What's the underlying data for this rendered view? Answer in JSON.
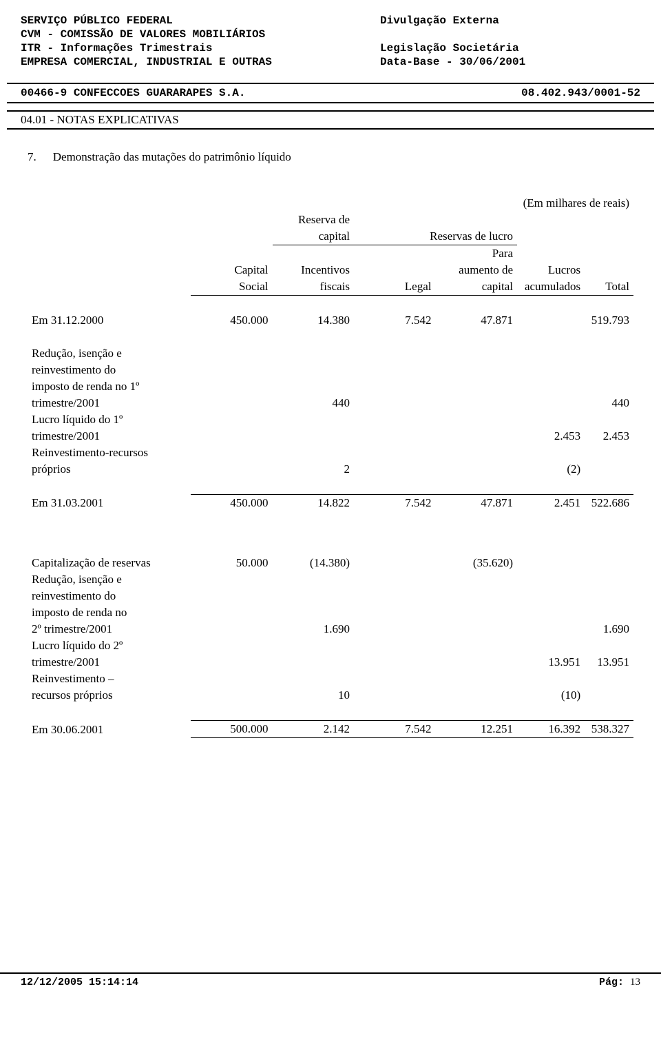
{
  "header": {
    "l1_left": "SERVIÇO PÚBLICO FEDERAL",
    "l1_right": "Divulgação Externa",
    "l2": "CVM - COMISSÃO DE VALORES MOBILIÁRIOS",
    "l3_left": "ITR - Informações Trimestrais",
    "l3_right": "Legislação Societária",
    "l4_left": "EMPRESA COMERCIAL, INDUSTRIAL E OUTRAS",
    "l4_right": "Data-Base - 30/06/2001"
  },
  "company_bar": {
    "code_name": "00466-9 CONFECCOES GUARARAPES S.A.",
    "cnpj": "08.402.943/0001-52"
  },
  "section_bar": "04.01 - NOTAS EXPLICATIVAS",
  "section": {
    "number": "7.",
    "title": "Demonstração das mutações do patrimônio líquido"
  },
  "unit": "(Em milhares de reais)",
  "col_headers": {
    "reserva_de": "Reserva de",
    "capital_small": "capital",
    "reservas_lucro": "Reservas de lucro",
    "capital": "Capital",
    "social": "Social",
    "incentivos": "Incentivos",
    "fiscais": "fiscais",
    "legal": "Legal",
    "para": "Para",
    "aumento_de": "aumento de",
    "capital2": "capital",
    "lucros": "Lucros",
    "acumulados": "acumulados",
    "total": "Total"
  },
  "rows": {
    "r1": {
      "label": "Em 31.12.2000",
      "c1": "450.000",
      "c2": "14.380",
      "c3": "7.542",
      "c4": "47.871",
      "c5": "",
      "c6": "519.793"
    },
    "r2a": "Redução, isenção e",
    "r2b": "reinvestimento do",
    "r2c": "imposto de renda no 1º",
    "r2": {
      "label": "trimestre/2001",
      "c1": "",
      "c2": "440",
      "c3": "",
      "c4": "",
      "c5": "",
      "c6": "440"
    },
    "r3a": "Lucro líquido do 1º",
    "r3": {
      "label": "trimestre/2001",
      "c1": "",
      "c2": "",
      "c3": "",
      "c4": "",
      "c5": "2.453",
      "c6": "2.453"
    },
    "r4a": "Reinvestimento-recursos",
    "r4": {
      "label": "próprios",
      "c1": "",
      "c2": "2",
      "c3": "",
      "c4": "",
      "c5": "(2)",
      "c6": ""
    },
    "r5": {
      "label": "Em 31.03.2001",
      "c1": "450.000",
      "c2": "14.822",
      "c3": "7.542",
      "c4": "47.871",
      "c5": "2.451",
      "c6": "522.686"
    },
    "r6": {
      "label": "Capitalização de reservas",
      "c1": "50.000",
      "c2": "(14.380)",
      "c3": "",
      "c4": "(35.620)",
      "c5": "",
      "c6": ""
    },
    "r7a": "Redução, isenção e",
    "r7b": "reinvestimento do",
    "r7c": "imposto de renda no",
    "r7": {
      "label": "2º trimestre/2001",
      "c1": "",
      "c2": "1.690",
      "c3": "",
      "c4": "",
      "c5": "",
      "c6": "1.690"
    },
    "r8a": "Lucro líquido do 2º",
    "r8": {
      "label": "trimestre/2001",
      "c1": "",
      "c2": "",
      "c3": "",
      "c4": "",
      "c5": "13.951",
      "c6": "13.951"
    },
    "r9a": "Reinvestimento –",
    "r9": {
      "label": "recursos próprios",
      "c1": "",
      "c2": "10",
      "c3": "",
      "c4": "",
      "c5": "(10)",
      "c6": ""
    },
    "r10": {
      "label": "Em 30.06.2001",
      "c1": "500.000",
      "c2": "2.142",
      "c3": "7.542",
      "c4": "12.251",
      "c5": "16.392",
      "c6": "538.327"
    }
  },
  "footer": {
    "timestamp": "12/12/2005 15:14:14",
    "page_label": "Pág:",
    "page_num": "13"
  }
}
